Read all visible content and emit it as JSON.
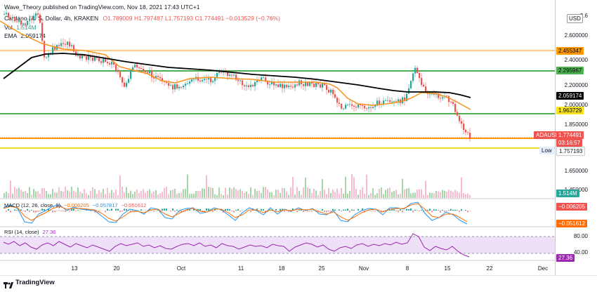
{
  "header": {
    "publisher": "Wave_Theory published on TradingView.com, Nov 18, 2021 17:43 UTC+1",
    "symbol": "Cardano / U S. Dollar, 4h, KRAKEN",
    "ohlc": "O1.789009 H1.797487 L1.757193 C1.774491 −0.013529 (−0.76%)",
    "vol_label": "Vol",
    "vol_value": "1.514M",
    "ema_label": "EMA",
    "ema_value": "2.059174"
  },
  "price_axis": {
    "currency_button": "USD",
    "ticks": [
      "2.600000",
      "2.400000",
      "2.200000",
      "2.000000",
      "1.850000",
      "1.650000",
      "1.550000",
      "1.450000"
    ],
    "labels": {
      "r1": "2.455347",
      "r2": "2.295967",
      "ema": "2.059174",
      "s1": "1.963729",
      "symbol": "ADAUSD",
      "last": "1.774491",
      "countdown": "03:16:57",
      "low_label": "Low",
      "low": "1.757193",
      "vol": "1.514M"
    },
    "top_partial": "2.6"
  },
  "macd": {
    "legend": "MACD (12, 26, close, 9)",
    "v1": "−0.006205",
    "v2": "−0.057817",
    "v3": "−0.051612",
    "axis_value": "−0.006205",
    "axis_value2": "−0.051612"
  },
  "rsi": {
    "legend": "RSI (14, close)",
    "value": "27.36",
    "ticks": [
      "80.00",
      "40.00"
    ],
    "axis_value": "27.36"
  },
  "time_axis": [
    "13",
    "20",
    "Oct",
    "11",
    "18",
    "25",
    "Nov",
    "8",
    "15",
    "22",
    "Dec"
  ],
  "footer": {
    "brand": "TradingView"
  },
  "colors": {
    "green_line": "#4caf50",
    "orange_line": "#ff9800",
    "yellow_line": "#f5e11f",
    "ema_black": "#000000",
    "ema_orange": "#f7931a",
    "red_tag": "#ef5350",
    "rsi_band": "#ede0f7",
    "rsi_line": "#9c27b0",
    "macd_blue": "#2196f3",
    "signal_orange": "#ff6d00"
  }
}
